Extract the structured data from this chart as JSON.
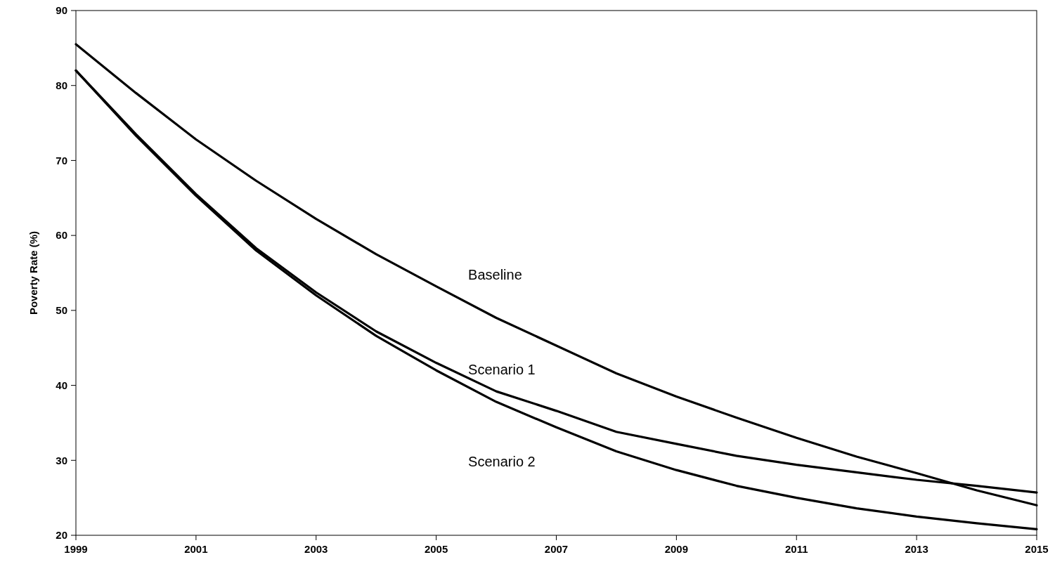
{
  "chart_data": {
    "type": "line",
    "ylabel": "Poverty Rate (%)",
    "x": [
      1999,
      2000,
      2001,
      2002,
      2003,
      2004,
      2005,
      2006,
      2007,
      2008,
      2009,
      2010,
      2011,
      2012,
      2013,
      2014,
      2015
    ],
    "series": [
      {
        "name": "Baseline",
        "color": "#000000",
        "values": [
          85.5,
          79,
          72.8,
          67.3,
          62.2,
          57.5,
          53.2,
          49,
          45.3,
          41.6,
          38.5,
          35.7,
          33,
          30.5,
          28.3,
          26,
          24
        ]
      },
      {
        "name": "Scenario 1",
        "color": "#000000",
        "values": [
          82,
          73.5,
          65.5,
          58.3,
          52.4,
          47.2,
          43,
          39.2,
          36.6,
          33.8,
          32.2,
          30.6,
          29.4,
          28.4,
          27.4,
          26.6,
          25.7
        ]
      },
      {
        "name": "Scenario 2",
        "color": "#000000",
        "values": [
          82,
          73.3,
          65.3,
          58,
          52,
          46.6,
          42,
          37.8,
          34.4,
          31.2,
          28.7,
          26.6,
          25,
          23.6,
          22.5,
          21.6,
          20.8
        ]
      }
    ],
    "xlim": [
      1999,
      2015
    ],
    "xticks": [
      1999,
      2001,
      2003,
      2005,
      2007,
      2009,
      2011,
      2013,
      2015
    ],
    "ylim": [
      20,
      90
    ],
    "yticks": [
      20,
      30,
      40,
      50,
      60,
      70,
      80,
      90
    ],
    "grid": false,
    "marker": "none",
    "line_style": "solid"
  }
}
